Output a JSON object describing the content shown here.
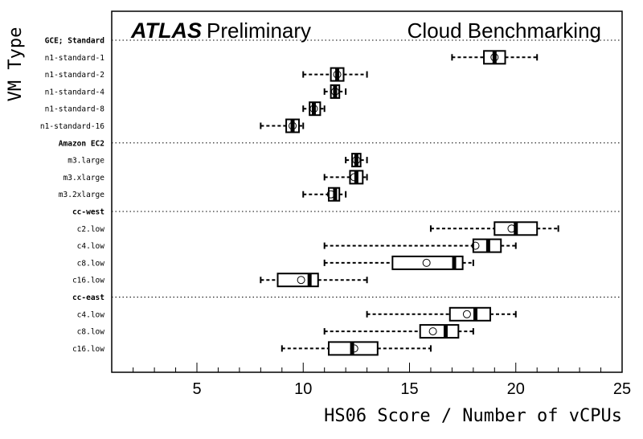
{
  "chart_data": {
    "type": "box",
    "title_bold": "ATLAS",
    "title_rest": "Preliminary",
    "subtitle": "Cloud Benchmarking",
    "xlabel": "HS06 Score / Number of vCPUs",
    "ylabel": "VM Type",
    "xlim": [
      0.5,
      25
    ],
    "x_ticks": [
      "5",
      "10",
      "15",
      "20",
      "25"
    ],
    "groups": [
      {
        "name": "GCE; Standard",
        "items": [
          {
            "label": "n1-standard-1",
            "whisker_low": 17.0,
            "q1": 18.5,
            "median": 19.0,
            "q3": 19.5,
            "whisker_high": 21.0,
            "mean": 19.0
          },
          {
            "label": "n1-standard-2",
            "whisker_low": 10.0,
            "q1": 11.3,
            "median": 11.6,
            "q3": 11.9,
            "whisker_high": 13.0,
            "mean": 11.6
          },
          {
            "label": "n1-standard-4",
            "whisker_low": 11.0,
            "q1": 11.3,
            "median": 11.5,
            "q3": 11.7,
            "whisker_high": 12.0,
            "mean": 11.5
          },
          {
            "label": "n1-standard-8",
            "whisker_low": 10.0,
            "q1": 10.3,
            "median": 10.5,
            "q3": 10.8,
            "whisker_high": 11.0,
            "mean": 10.5
          },
          {
            "label": "n1-standard-16",
            "whisker_low": 8.0,
            "q1": 9.2,
            "median": 9.5,
            "q3": 9.8,
            "whisker_high": 10.0,
            "mean": 9.5
          }
        ]
      },
      {
        "name": "Amazon EC2",
        "items": [
          {
            "label": "m3.large",
            "whisker_low": 12.0,
            "q1": 12.3,
            "median": 12.5,
            "q3": 12.7,
            "whisker_high": 13.0,
            "mean": 12.5
          },
          {
            "label": "m3.xlarge",
            "whisker_low": 11.0,
            "q1": 12.2,
            "median": 12.5,
            "q3": 12.8,
            "whisker_high": 13.0,
            "mean": 12.4
          },
          {
            "label": "m3.2xlarge",
            "whisker_low": 10.0,
            "q1": 11.2,
            "median": 11.5,
            "q3": 11.7,
            "whisker_high": 12.0,
            "mean": 11.3
          }
        ]
      },
      {
        "name": "cc-west",
        "items": [
          {
            "label": "c2.low",
            "whisker_low": 16.0,
            "q1": 19.0,
            "median": 20.0,
            "q3": 21.0,
            "whisker_high": 22.0,
            "mean": 19.8
          },
          {
            "label": "c4.low",
            "whisker_low": 11.0,
            "q1": 18.0,
            "median": 18.7,
            "q3": 19.3,
            "whisker_high": 20.0,
            "mean": 18.1
          },
          {
            "label": "c8.low",
            "whisker_low": 11.0,
            "q1": 14.2,
            "median": 17.1,
            "q3": 17.5,
            "whisker_high": 18.0,
            "mean": 15.8
          },
          {
            "label": "c16.low",
            "whisker_low": 8.0,
            "q1": 8.8,
            "median": 10.3,
            "q3": 10.7,
            "whisker_high": 13.0,
            "mean": 9.9
          }
        ]
      },
      {
        "name": "cc-east",
        "items": [
          {
            "label": "c4.low",
            "whisker_low": 13.0,
            "q1": 16.9,
            "median": 18.1,
            "q3": 18.8,
            "whisker_high": 20.0,
            "mean": 17.7
          },
          {
            "label": "c8.low",
            "whisker_low": 11.0,
            "q1": 15.5,
            "median": 16.7,
            "q3": 17.3,
            "whisker_high": 18.0,
            "mean": 16.1
          },
          {
            "label": "c16.low",
            "whisker_low": 9.0,
            "q1": 11.2,
            "median": 12.3,
            "q3": 13.5,
            "whisker_high": 16.0,
            "mean": 12.4
          }
        ]
      }
    ]
  }
}
